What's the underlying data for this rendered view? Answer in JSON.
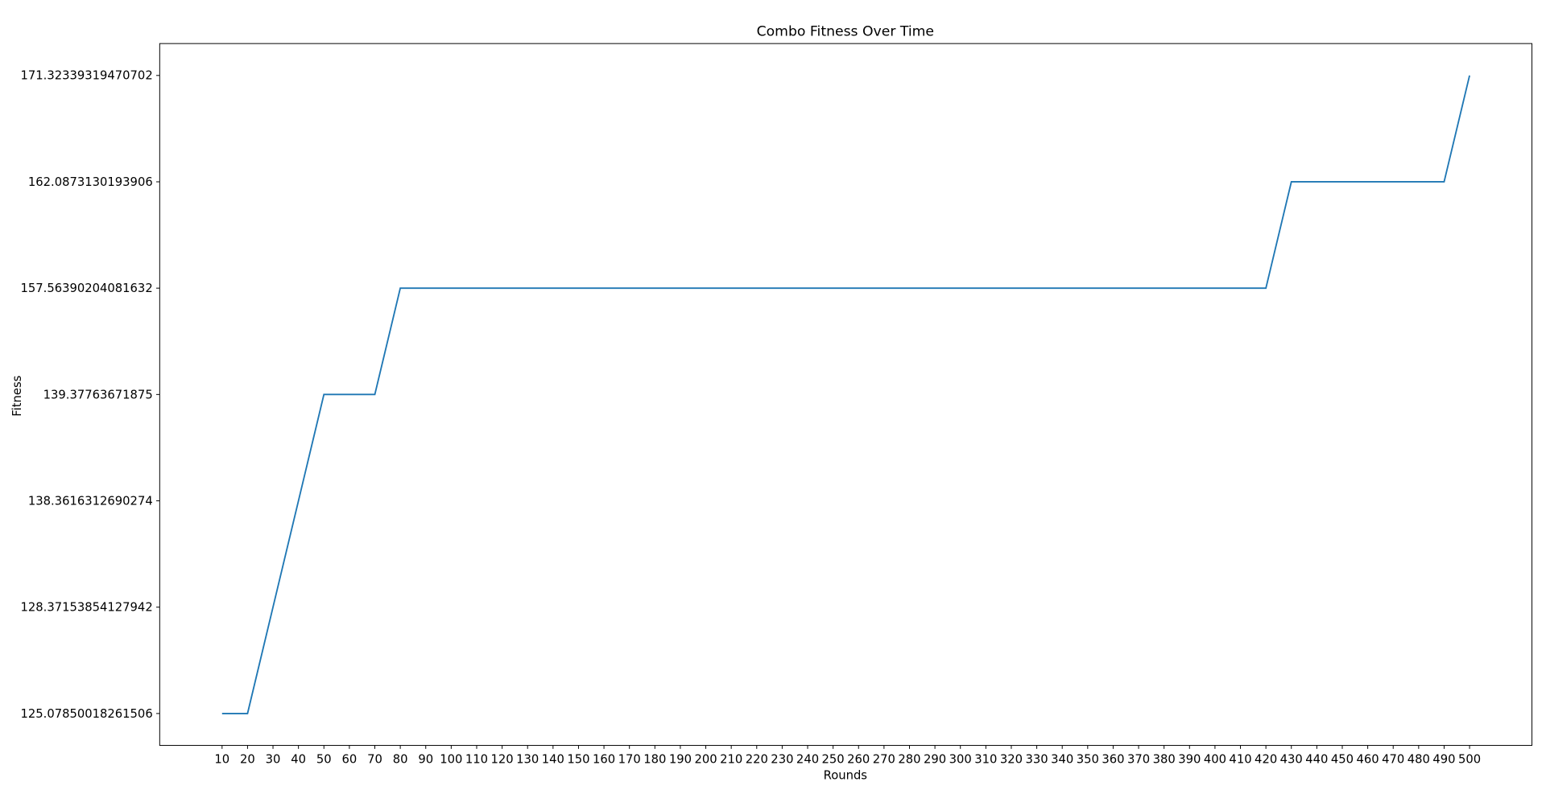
{
  "chart_data": {
    "type": "line",
    "title": "Combo Fitness Over Time",
    "x_label": "Rounds",
    "y_label": "Fitness",
    "x": [
      10,
      20,
      30,
      40,
      50,
      60,
      70,
      80,
      90,
      100,
      110,
      120,
      130,
      140,
      150,
      160,
      170,
      180,
      190,
      200,
      210,
      220,
      230,
      240,
      250,
      260,
      270,
      280,
      290,
      300,
      310,
      320,
      330,
      340,
      350,
      360,
      370,
      380,
      390,
      400,
      410,
      420,
      430,
      440,
      450,
      460,
      470,
      480,
      490,
      500
    ],
    "values": [
      125.07850018261506,
      125.07850018261506,
      128.37153854127942,
      138.3616312690274,
      139.37763671875,
      139.37763671875,
      139.37763671875,
      157.56390204081632,
      157.56390204081632,
      157.56390204081632,
      157.56390204081632,
      157.56390204081632,
      157.56390204081632,
      157.56390204081632,
      157.56390204081632,
      157.56390204081632,
      157.56390204081632,
      157.56390204081632,
      157.56390204081632,
      157.56390204081632,
      157.56390204081632,
      157.56390204081632,
      157.56390204081632,
      157.56390204081632,
      157.56390204081632,
      157.56390204081632,
      157.56390204081632,
      157.56390204081632,
      157.56390204081632,
      157.56390204081632,
      157.56390204081632,
      157.56390204081632,
      157.56390204081632,
      157.56390204081632,
      157.56390204081632,
      157.56390204081632,
      157.56390204081632,
      157.56390204081632,
      157.56390204081632,
      157.56390204081632,
      157.56390204081632,
      157.56390204081632,
      162.0873130193906,
      162.0873130193906,
      162.0873130193906,
      162.0873130193906,
      162.0873130193906,
      162.0873130193906,
      162.0873130193906,
      171.32339319470702
    ],
    "color": "#1f77b4",
    "xlim": [
      -14.5,
      524.5
    ],
    "xticks": [
      10,
      20,
      30,
      40,
      50,
      60,
      70,
      80,
      90,
      100,
      110,
      120,
      130,
      140,
      150,
      160,
      170,
      180,
      190,
      200,
      210,
      220,
      230,
      240,
      250,
      260,
      270,
      280,
      290,
      300,
      310,
      320,
      330,
      340,
      350,
      360,
      370,
      380,
      390,
      400,
      410,
      420,
      430,
      440,
      450,
      460,
      470,
      480,
      490,
      500
    ],
    "y_scale": "categorical",
    "yticks": [
      125.07850018261506,
      128.37153854127942,
      138.3616312690274,
      139.37763671875,
      157.56390204081632,
      162.0873130193906,
      171.32339319470702
    ]
  }
}
